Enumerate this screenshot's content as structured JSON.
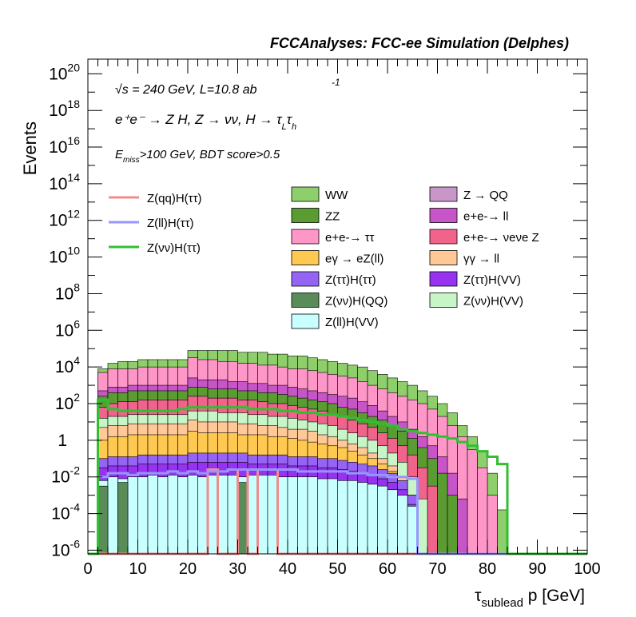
{
  "chart_data": {
    "type": "histogram-stacked",
    "title": "FCCAnalyses: FCC-ee Simulation (Delphes)",
    "ylabel": "Events",
    "xlabel": "τ_sublead p [GeV]",
    "xlabel_main": "τ",
    "xlabel_sub": "sublead",
    "xlabel_rest": " p [GeV]",
    "y_scale": "log",
    "xlim": [
      0,
      100
    ],
    "ylim_log10": [
      -6.2,
      20.8
    ],
    "x_ticks": [
      "0",
      "10",
      "20",
      "30",
      "40",
      "50",
      "60",
      "70",
      "80",
      "90",
      "100"
    ],
    "y_ticks": [
      {
        "base": "10",
        "exp": "-6",
        "log": -6
      },
      {
        "base": "10",
        "exp": "-4",
        "log": -4
      },
      {
        "base": "10",
        "exp": "-2",
        "log": -2
      },
      {
        "base": "1",
        "exp": "",
        "log": 0
      },
      {
        "base": "10",
        "exp": "2",
        "log": 2
      },
      {
        "base": "10",
        "exp": "4",
        "log": 4
      },
      {
        "base": "10",
        "exp": "6",
        "log": 6
      },
      {
        "base": "10",
        "exp": "8",
        "log": 8
      },
      {
        "base": "10",
        "exp": "10",
        "log": 10
      },
      {
        "base": "10",
        "exp": "12",
        "log": 12
      },
      {
        "base": "10",
        "exp": "14",
        "log": 14
      },
      {
        "base": "10",
        "exp": "16",
        "log": 16
      },
      {
        "base": "10",
        "exp": "18",
        "log": 18
      },
      {
        "base": "10",
        "exp": "20",
        "log": 20
      }
    ],
    "annotations": [
      "√s = 240 GeV, L=10.8 ab -1",
      "e+e- → Z H, Z → νν, H → τLτh",
      "Emiss>100 GeV, BDT score>0.5"
    ],
    "ann_sqrt": "√",
    "ann_s_rest": "s = 240 GeV, L=10.8 ab",
    "ann_lumi_exp": "-1",
    "ann_proc": "e⁺e⁻ → Z H, Z → νν, H → τ",
    "ann_proc_L": "L",
    "ann_proc_tau": "τ",
    "ann_proc_h": "h",
    "ann_cut_E": "E",
    "ann_cut_sub": "miss",
    "ann_cut_rest": ">100 GeV, BDT score>0.5",
    "bins": {
      "x0": 0,
      "width": 2,
      "count": 50
    },
    "stack_layers": [
      {
        "name": "WW",
        "color": "#8fcf6b",
        "log_values": [
          -6.2,
          3.9,
          4.2,
          4.3,
          4.3,
          4.4,
          4.4,
          4.4,
          4.4,
          4.4,
          4.9,
          4.9,
          4.9,
          4.9,
          4.9,
          4.8,
          4.8,
          4.8,
          4.7,
          4.7,
          4.6,
          4.6,
          4.5,
          4.4,
          4.3,
          4.2,
          4.1,
          4.0,
          3.8,
          3.6,
          3.4,
          3.2,
          3.0,
          2.7,
          2.4,
          2.0,
          1.5,
          0.8,
          0.2,
          -0.6,
          -1.8,
          -3.8,
          -6.2,
          -6.2,
          -6.2,
          -6.2,
          -6.2,
          -6.2,
          -6.2,
          -6.2
        ]
      },
      {
        "name": "e+e-→ ττ",
        "color": "#ff96c8",
        "log_values": [
          -6.2,
          3.7,
          3.9,
          3.9,
          3.9,
          4.0,
          4.0,
          4.0,
          4.0,
          4.0,
          4.5,
          4.4,
          4.4,
          4.3,
          4.3,
          4.2,
          4.2,
          4.1,
          4.1,
          4.0,
          3.9,
          3.9,
          3.8,
          3.7,
          3.6,
          3.5,
          3.4,
          3.2,
          3.0,
          2.8,
          2.6,
          2.4,
          2.2,
          2.0,
          1.7,
          1.3,
          0.8,
          0.2,
          -0.5,
          -1.5,
          -3.0,
          -6.2,
          -6.2,
          -6.2,
          -6.2,
          -6.2,
          -6.2,
          -6.2,
          -6.2,
          -6.2
        ]
      },
      {
        "name": "e+e-→ ll",
        "color": "#c855c8",
        "log_values": [
          -6.2,
          2.7,
          2.9,
          2.9,
          3.0,
          3.0,
          3.0,
          3.0,
          3.0,
          3.0,
          3.4,
          3.3,
          3.3,
          3.3,
          3.2,
          3.2,
          3.1,
          3.1,
          3.0,
          3.0,
          2.9,
          2.8,
          2.7,
          2.6,
          2.5,
          2.4,
          2.3,
          2.1,
          1.9,
          1.6,
          1.3,
          1.0,
          0.6,
          0.2,
          -0.3,
          -0.9,
          -1.8,
          -3.2,
          -6.2,
          -6.2,
          -6.2,
          -6.2,
          -6.2,
          -6.2,
          -6.2,
          -6.2,
          -6.2,
          -6.2,
          -6.2,
          -6.2
        ]
      },
      {
        "name": "ZZ",
        "color": "#5a9b32",
        "log_values": [
          -6.2,
          2.4,
          2.6,
          2.6,
          2.7,
          2.7,
          2.7,
          2.7,
          2.7,
          2.7,
          2.9,
          2.9,
          2.8,
          2.8,
          2.8,
          2.7,
          2.7,
          2.6,
          2.6,
          2.5,
          2.4,
          2.3,
          2.2,
          2.1,
          2.0,
          1.8,
          1.7,
          1.5,
          1.3,
          1.1,
          0.8,
          0.5,
          0.1,
          -0.4,
          -1.0,
          -1.8,
          -3.0,
          -6.2,
          -6.2,
          -6.2,
          -6.2,
          -6.2,
          -6.2,
          -6.2,
          -6.2,
          -6.2,
          -6.2,
          -6.2,
          -6.2,
          -6.2
        ]
      },
      {
        "name": "e+e-→ νeνe Z",
        "color": "#f0648c",
        "log_values": [
          -6.2,
          1.8,
          2.0,
          2.1,
          2.1,
          2.2,
          2.2,
          2.2,
          2.2,
          2.2,
          2.4,
          2.4,
          2.3,
          2.3,
          2.3,
          2.2,
          2.2,
          2.1,
          2.0,
          2.0,
          1.9,
          1.8,
          1.7,
          1.6,
          1.4,
          1.3,
          1.1,
          0.9,
          0.7,
          0.4,
          0.1,
          -0.3,
          -0.8,
          -1.5,
          -2.5,
          -6.2,
          -6.2,
          -6.2,
          -6.2,
          -6.2,
          -6.2,
          -6.2,
          -6.2,
          -6.2,
          -6.2,
          -6.2,
          -6.2,
          -6.2,
          -6.2,
          -6.2
        ]
      },
      {
        "name": "Z(νν)H(VV)",
        "color": "#c8f5c8",
        "log_values": [
          -6.2,
          1.2,
          1.3,
          1.3,
          1.4,
          1.4,
          1.4,
          1.4,
          1.4,
          1.4,
          1.6,
          1.6,
          1.6,
          1.5,
          1.5,
          1.5,
          1.4,
          1.4,
          1.3,
          1.3,
          1.2,
          1.1,
          1.0,
          0.9,
          0.8,
          0.6,
          0.4,
          0.2,
          0.0,
          -0.3,
          -0.7,
          -1.2,
          -2.0,
          -3.2,
          -6.2,
          -6.2,
          -6.2,
          -6.2,
          -6.2,
          -6.2,
          -6.2,
          -6.2,
          -6.2,
          -6.2,
          -6.2,
          -6.2,
          -6.2,
          -6.2,
          -6.2,
          -6.2
        ]
      },
      {
        "name": "γγ → ll",
        "color": "#ffc896",
        "log_values": [
          -6.2,
          0.7,
          0.8,
          0.8,
          0.9,
          0.9,
          0.9,
          0.9,
          0.9,
          0.9,
          1.1,
          1.0,
          1.0,
          1.0,
          1.0,
          0.9,
          0.9,
          0.8,
          0.8,
          0.7,
          0.6,
          0.6,
          0.5,
          0.3,
          0.2,
          0.0,
          -0.2,
          -0.4,
          -0.7,
          -1.0,
          -1.4,
          -2.0,
          -3.0,
          -6.2,
          -6.2,
          -6.2,
          -6.2,
          -6.2,
          -6.2,
          -6.2,
          -6.2,
          -6.2,
          -6.2,
          -6.2,
          -6.2,
          -6.2,
          -6.2,
          -6.2,
          -6.2,
          -6.2
        ]
      },
      {
        "name": "eγ → eZ(ll)",
        "color": "#ffc850",
        "log_values": [
          -6.2,
          0.0,
          0.2,
          0.2,
          0.3,
          0.3,
          0.3,
          0.3,
          0.3,
          0.3,
          0.5,
          0.4,
          0.4,
          0.4,
          0.4,
          0.3,
          0.3,
          0.3,
          0.2,
          0.2,
          0.1,
          0.0,
          -0.1,
          -0.2,
          -0.3,
          -0.4,
          -0.6,
          -0.8,
          -1.0,
          -1.3,
          -1.7,
          -2.2,
          -3.0,
          -6.2,
          -6.2,
          -6.2,
          -6.2,
          -6.2,
          -6.2,
          -6.2,
          -6.2,
          -6.2,
          -6.2,
          -6.2,
          -6.2,
          -6.2,
          -6.2,
          -6.2,
          -6.2,
          -6.2
        ]
      },
      {
        "name": "Z(ττ)H(ττ)",
        "color": "#9664f5",
        "log_values": [
          -6.2,
          -1.0,
          -0.9,
          -0.9,
          -0.9,
          -0.8,
          -0.8,
          -0.8,
          -0.8,
          -0.8,
          -0.7,
          -0.7,
          -0.7,
          -0.7,
          -0.7,
          -0.7,
          -0.8,
          -0.8,
          -0.8,
          -0.8,
          -0.9,
          -0.9,
          -0.9,
          -1.0,
          -1.0,
          -1.1,
          -1.2,
          -1.3,
          -1.4,
          -1.6,
          -1.8,
          -2.2,
          -3.0,
          -6.2,
          -6.2,
          -6.2,
          -6.2,
          -6.2,
          -6.2,
          -6.2,
          -6.2,
          -6.2,
          -6.2,
          -6.2,
          -6.2,
          -6.2,
          -6.2,
          -6.2,
          -6.2,
          -6.2
        ]
      },
      {
        "name": "Z(ττ)H(VV)",
        "color": "#9632f0",
        "log_values": [
          -6.2,
          -1.5,
          -1.4,
          -1.4,
          -1.4,
          -1.3,
          -1.3,
          -1.3,
          -1.3,
          -1.3,
          -1.2,
          -1.2,
          -1.2,
          -1.2,
          -1.2,
          -1.2,
          -1.3,
          -1.3,
          -1.3,
          -1.3,
          -1.4,
          -1.4,
          -1.4,
          -1.5,
          -1.5,
          -1.6,
          -1.7,
          -1.8,
          -1.9,
          -2.1,
          -2.3,
          -2.7,
          -3.5,
          -6.2,
          -6.2,
          -6.2,
          -6.2,
          -6.2,
          -6.2,
          -6.2,
          -6.2,
          -6.2,
          -6.2,
          -6.2,
          -6.2,
          -6.2,
          -6.2,
          -6.2,
          -6.2,
          -6.2
        ]
      },
      {
        "name": "Z(ll)H(VV)",
        "color": "#c8ffff",
        "log_values": [
          -6.2,
          -2.2,
          -2.0,
          -2.1,
          -2.0,
          -2.0,
          -1.9,
          -2.0,
          -1.9,
          -2.0,
          -1.9,
          -2.0,
          -1.9,
          -1.9,
          -1.9,
          -2.0,
          -1.9,
          -1.9,
          -1.9,
          -2.0,
          -2.0,
          -2.0,
          -2.0,
          -2.1,
          -2.1,
          -2.2,
          -2.2,
          -2.3,
          -2.4,
          -2.5,
          -2.7,
          -3.0,
          -3.6,
          -6.2,
          -6.2,
          -6.2,
          -6.2,
          -6.2,
          -6.2,
          -6.2,
          -6.2,
          -6.2,
          -6.2,
          -6.2,
          -6.2,
          -6.2,
          -6.2,
          -6.2,
          -6.2,
          -6.2
        ]
      },
      {
        "name": "Z(νν)H(QQ)",
        "color": "#5a8c5a",
        "log_values": [
          -6.2,
          -2.5,
          -6.2,
          -2.3,
          -6.2,
          -6.2,
          -6.2,
          -6.2,
          -6.2,
          -6.2,
          -6.2,
          -6.2,
          -6.2,
          -6.2,
          -6.2,
          -2.3,
          -6.2,
          -6.2,
          -6.2,
          -6.2,
          -6.2,
          -6.2,
          -6.2,
          -6.2,
          -6.2,
          -6.2,
          -6.2,
          -6.2,
          -6.2,
          -6.2,
          -6.2,
          -6.2,
          -6.2,
          -6.2,
          -6.2,
          -6.2,
          -6.2,
          -6.2,
          -6.2,
          -6.2,
          -6.2,
          -6.2,
          -6.2,
          -6.2,
          -6.2,
          -6.2,
          -6.2,
          -6.2,
          -6.2,
          -6.2
        ]
      },
      {
        "name": "Z → QQ",
        "color": "#c896c8",
        "log_values": [
          -6.2,
          -6.2,
          -6.2,
          -6.2,
          -6.2,
          -6.2,
          -6.2,
          -6.2,
          -6.2,
          -6.2,
          -6.2,
          -6.2,
          -6.2,
          -6.2,
          -6.2,
          -6.2,
          -6.2,
          -6.2,
          -6.2,
          -6.2,
          -6.2,
          -6.2,
          -6.2,
          -6.2,
          -6.2,
          -6.2,
          -6.2,
          -6.2,
          -6.2,
          -6.2,
          -6.2,
          -6.2,
          -6.2,
          -6.2,
          -6.2,
          -6.2,
          -6.2,
          -6.2,
          -6.2,
          -6.2,
          -6.2,
          -6.2,
          -6.2,
          -6.2,
          -6.2,
          -6.2,
          -6.2,
          -6.2,
          -6.2,
          -6.2
        ]
      }
    ],
    "line_series": [
      {
        "name": "Z(qq)H(ττ)",
        "color": "#f08c8c",
        "log_values": [
          -6.2,
          -6.2,
          -6.2,
          -6.2,
          -6.2,
          -6.2,
          -6.2,
          -6.2,
          -6.2,
          -6.2,
          -6.2,
          -6.2,
          -1.6,
          -6.2,
          -6.2,
          -1.6,
          -6.2,
          -1.6,
          -1.6,
          -6.2,
          -6.2,
          -6.2,
          -6.2,
          -6.2,
          -6.2,
          -6.2,
          -6.2,
          -6.2,
          -6.2,
          -6.2,
          -6.2,
          -6.2,
          -6.2,
          -6.2,
          -6.2,
          -6.2,
          -6.2,
          -6.2,
          -6.2,
          -6.2,
          -6.2,
          -6.2,
          -6.2,
          -6.2,
          -6.2,
          -6.2,
          -6.2,
          -6.2,
          -6.2,
          -6.2
        ]
      },
      {
        "name": "Z(ll)H(ττ)",
        "color": "#9696ff",
        "log_values": [
          -6.2,
          -2.0,
          -1.8,
          -1.8,
          -1.9,
          -1.8,
          -1.8,
          -1.8,
          -1.7,
          -1.8,
          -1.7,
          -1.8,
          -1.7,
          -1.7,
          -1.6,
          -1.6,
          -1.6,
          -1.6,
          -1.6,
          -1.6,
          -1.6,
          -1.7,
          -1.7,
          -1.7,
          -1.7,
          -1.7,
          -1.8,
          -1.8,
          -1.9,
          -1.9,
          -2.0,
          -2.0,
          -2.1,
          -6.2,
          -6.2,
          -6.2,
          -6.2,
          -6.2,
          -6.2,
          -6.2,
          -6.2,
          -6.2,
          -6.2,
          -6.2,
          -6.2,
          -6.2,
          -6.2,
          -6.2,
          -6.2,
          -6.2
        ]
      },
      {
        "name": "Z(νν)H(ττ)",
        "color": "#32be32",
        "log_values": [
          -6.2,
          2.2,
          1.7,
          1.6,
          1.6,
          1.6,
          1.6,
          1.6,
          1.6,
          1.7,
          1.8,
          1.8,
          1.8,
          1.8,
          1.8,
          1.8,
          1.7,
          1.7,
          1.7,
          1.6,
          1.6,
          1.5,
          1.5,
          1.4,
          1.4,
          1.3,
          1.2,
          1.1,
          1.0,
          0.9,
          0.8,
          0.6,
          0.5,
          0.4,
          0.3,
          0.2,
          0.1,
          -0.1,
          -0.3,
          -0.6,
          -0.9,
          -1.3,
          -6.2,
          -6.2,
          -6.2,
          -6.2,
          -6.2,
          -6.2,
          -6.2,
          -6.2
        ]
      }
    ],
    "legend_lines": [
      "Z(qq)H(ττ)",
      "Z(ll)H(ττ)",
      "Z(νν)H(ττ)"
    ],
    "legend_col1": [
      "WW",
      "ZZ",
      "e+e-→ ττ",
      "eγ → eZ(ll)",
      "Z(ττ)H(ττ)",
      "Z(νν)H(QQ)",
      "Z(ll)H(VV)"
    ],
    "legend_col2": [
      "Z → QQ",
      "e+e-→ ll",
      "e+e-→ νeνe Z",
      "γγ → ll",
      "Z(ττ)H(VV)",
      "Z(νν)H(VV)"
    ],
    "legend_placement": "upper-right"
  }
}
